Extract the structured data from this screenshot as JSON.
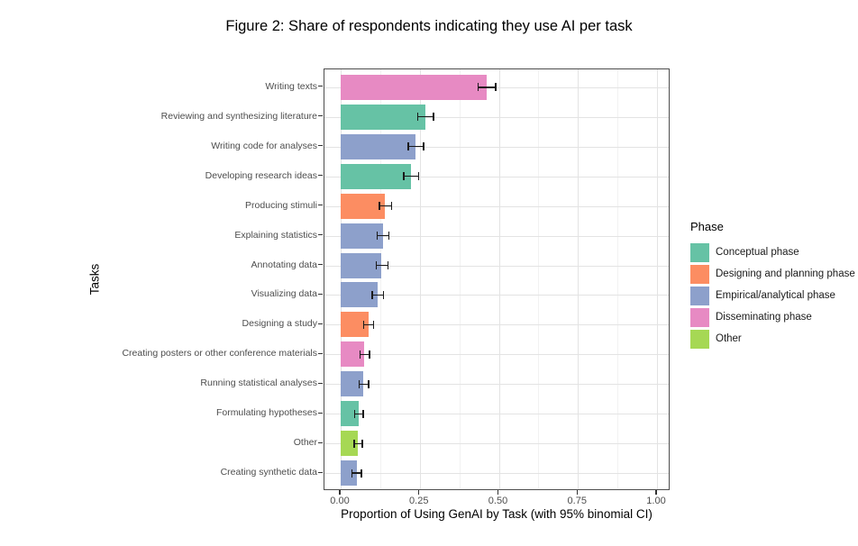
{
  "chart_data": {
    "type": "bar",
    "orientation": "horizontal",
    "title": "Figure 2: Share of respondents indicating they use AI per task",
    "xlabel": "Proportion of Using GenAI by Task (with 95% binomial CI)",
    "ylabel": "Tasks",
    "xlim": [
      0,
      1
    ],
    "x_ticks": [
      0,
      0.25,
      0.5,
      0.75,
      1
    ],
    "x_tick_labels": [
      "0.00",
      "0.25",
      "0.50",
      "0.75",
      "1.00"
    ],
    "x_minor_ticks": [
      0.125,
      0.375,
      0.625,
      0.875
    ],
    "grid": "vertical major+minor gridlines, horizontal major gridlines at category centers",
    "error_bars": "95% binomial CI",
    "legend": {
      "title": "Phase",
      "position": "right",
      "entries": [
        {
          "label": "Conceptual phase",
          "color": "#66C2A5"
        },
        {
          "label": "Designing and planning phase",
          "color": "#FC8D62"
        },
        {
          "label": "Empirical/analytical phase",
          "color": "#8DA0CB"
        },
        {
          "label": "Disseminating phase",
          "color": "#E78AC3"
        },
        {
          "label": "Other",
          "color": "#A6D854"
        }
      ]
    },
    "bars": [
      {
        "task": "Writing texts",
        "phase": "Disseminating phase",
        "value": 0.461,
        "ci_low": 0.432,
        "ci_high": 0.492
      },
      {
        "task": "Reviewing and synthesizing literature",
        "phase": "Conceptual phase",
        "value": 0.267,
        "ci_low": 0.241,
        "ci_high": 0.295
      },
      {
        "task": "Writing code for analyses",
        "phase": "Empirical/analytical phase",
        "value": 0.237,
        "ci_low": 0.212,
        "ci_high": 0.264
      },
      {
        "task": "Developing research ideas",
        "phase": "Conceptual phase",
        "value": 0.222,
        "ci_low": 0.198,
        "ci_high": 0.248
      },
      {
        "task": "Producing stimuli",
        "phase": "Designing and planning phase",
        "value": 0.141,
        "ci_low": 0.121,
        "ci_high": 0.163
      },
      {
        "task": "Explaining statistics",
        "phase": "Empirical/analytical phase",
        "value": 0.133,
        "ci_low": 0.113,
        "ci_high": 0.155
      },
      {
        "task": "Annotating data",
        "phase": "Empirical/analytical phase",
        "value": 0.129,
        "ci_low": 0.11,
        "ci_high": 0.151
      },
      {
        "task": "Visualizing data",
        "phase": "Empirical/analytical phase",
        "value": 0.117,
        "ci_low": 0.098,
        "ci_high": 0.138
      },
      {
        "task": "Designing a study",
        "phase": "Designing and planning phase",
        "value": 0.087,
        "ci_low": 0.07,
        "ci_high": 0.106
      },
      {
        "task": "Creating posters or other conference materials",
        "phase": "Disseminating phase",
        "value": 0.075,
        "ci_low": 0.059,
        "ci_high": 0.093
      },
      {
        "task": "Running statistical analyses",
        "phase": "Empirical/analytical phase",
        "value": 0.072,
        "ci_low": 0.056,
        "ci_high": 0.09
      },
      {
        "task": "Formulating hypotheses",
        "phase": "Conceptual phase",
        "value": 0.057,
        "ci_low": 0.042,
        "ci_high": 0.073
      },
      {
        "task": "Other",
        "phase": "Other",
        "value": 0.055,
        "ci_low": 0.04,
        "ci_high": 0.071
      },
      {
        "task": "Creating synthetic data",
        "phase": "Empirical/analytical phase",
        "value": 0.051,
        "ci_low": 0.034,
        "ci_high": 0.068
      }
    ],
    "style": {
      "background": "#ffffff",
      "panel_border": "#4d4d4d",
      "grid_major": "#e3e3e3",
      "grid_minor": "#f2f2f2",
      "axis_text": "#4d4d4d",
      "error_bar": "#1a1a1a"
    }
  }
}
